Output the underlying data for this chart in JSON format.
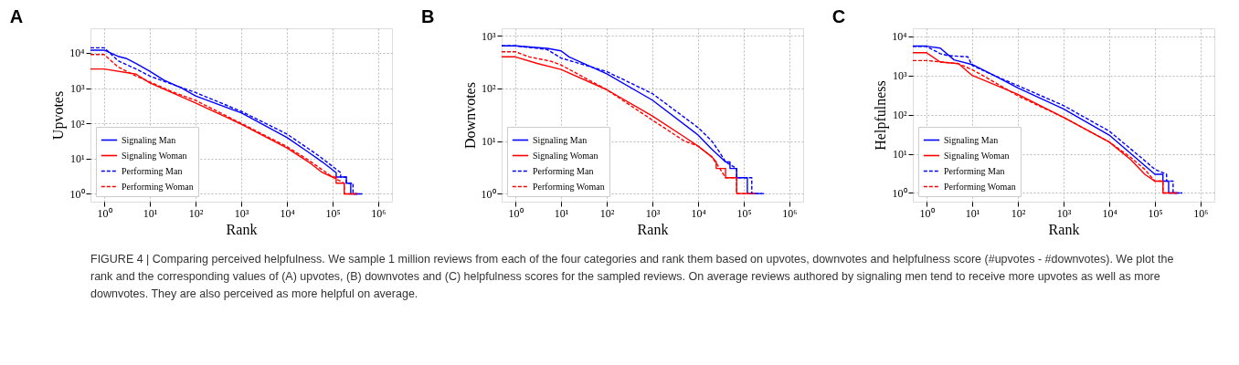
{
  "chart_data": [
    {
      "type": "line",
      "title": "A",
      "xlabel": "Rank",
      "ylabel": "Upvotes",
      "log": "xy",
      "grid": true,
      "legend": "bottom left",
      "xlim": [
        0.5,
        2000000
      ],
      "ylim": [
        0.6,
        50000
      ],
      "xticks": [
        {
          "value": 1,
          "label": "10⁰"
        },
        {
          "value": 10,
          "label": "10¹"
        },
        {
          "value": 100,
          "label": "10²"
        },
        {
          "value": 1000,
          "label": "10³"
        },
        {
          "value": 10000,
          "label": "10⁴"
        },
        {
          "value": 100000,
          "label": "10⁵"
        },
        {
          "value": 1000000,
          "label": "10⁶"
        }
      ],
      "yticks": [
        {
          "value": 1,
          "label": "10⁰"
        },
        {
          "value": 10,
          "label": "10¹"
        },
        {
          "value": 100,
          "label": "10²"
        },
        {
          "value": 1000,
          "label": "10³"
        },
        {
          "value": 10000,
          "label": "10⁴"
        }
      ],
      "series": [
        {
          "name": "Signaling Man",
          "color": "#0000ff",
          "line_style": "solid",
          "x": [
            0.5,
            1,
            2,
            3,
            5,
            10,
            20,
            50,
            100,
            1000,
            10000,
            30000,
            60000,
            120000,
            120000,
            200000,
            200000,
            250000,
            250000,
            400000
          ],
          "values": [
            12000,
            12000,
            8000,
            7000,
            5000,
            3000,
            1700,
            1000,
            600,
            200,
            40,
            15,
            8,
            4,
            3,
            3,
            2,
            2,
            1,
            1
          ]
        },
        {
          "name": "Signaling Woman",
          "color": "#ff0000",
          "line_style": "solid",
          "x": [
            0.5,
            1,
            5,
            10,
            100,
            1000,
            10000,
            30000,
            60000,
            100000,
            120000,
            120000,
            180000,
            180000,
            350000
          ],
          "values": [
            3500,
            3500,
            2500,
            1400,
            380,
            95,
            20,
            8,
            4,
            3,
            3,
            2,
            2,
            1,
            1
          ]
        },
        {
          "name": "Performing Man",
          "color": "#0000ff",
          "line_style": "dashed",
          "x": [
            0.5,
            1,
            2,
            5,
            10,
            30,
            100,
            1000,
            10000,
            50000,
            100000,
            150000,
            150000,
            200000,
            200000,
            280000,
            280000,
            450000
          ],
          "values": [
            14000,
            14000,
            6000,
            3500,
            2200,
            1300,
            750,
            220,
            50,
            12,
            6,
            4,
            3,
            3,
            2,
            2,
            1,
            1
          ]
        },
        {
          "name": "Performing Woman",
          "color": "#ff0000",
          "line_style": "dashed",
          "x": [
            0.5,
            1,
            2,
            5,
            10,
            30,
            100,
            1000,
            10000,
            30000,
            100000,
            180000,
            180000,
            350000
          ],
          "values": [
            9000,
            9000,
            4000,
            2200,
            1500,
            800,
            450,
            100,
            22,
            9,
            3,
            2,
            1,
            1
          ]
        }
      ],
      "annotations": [
        "FIGURE 4 | Comparing perceived helpfulness. We sample 1 million reviews from each of the four categories and rank them based on upvotes, downvotes and helpfulness score (#upvotes - #downvotes). We plot the rank and the corresponding values of (A) upvotes, (B) downvotes and (C) helpfulness scores for the sampled reviews. On average reviews authored by signaling men tend to receive more upvotes as well as more downvotes. They are also perceived as more helpful on average."
      ]
    },
    {
      "type": "line",
      "title": "B",
      "xlabel": "Rank",
      "ylabel": "Downvotes",
      "log": "xy",
      "grid": true,
      "legend": "bottom left",
      "xlim": [
        0.5,
        2000000
      ],
      "ylim": [
        0.7,
        1400
      ],
      "xticks": [
        {
          "value": 1,
          "label": "10⁰"
        },
        {
          "value": 10,
          "label": "10¹"
        },
        {
          "value": 100,
          "label": "10²"
        },
        {
          "value": 1000,
          "label": "10³"
        },
        {
          "value": 10000,
          "label": "10⁴"
        },
        {
          "value": 100000,
          "label": "10⁵"
        },
        {
          "value": 1000000,
          "label": "10⁶"
        }
      ],
      "yticks": [
        {
          "value": 1,
          "label": "10⁰"
        },
        {
          "value": 10,
          "label": "10¹"
        },
        {
          "value": 100,
          "label": "10²"
        },
        {
          "value": 1000,
          "label": "10³"
        }
      ],
      "series": [
        {
          "name": "Signaling Man",
          "color": "#0000ff",
          "line_style": "solid",
          "x": [
            0.5,
            1,
            5,
            10,
            15,
            100,
            1000,
            10000,
            20000,
            40000,
            50000,
            50000,
            70000,
            70000,
            120000,
            120000,
            250000
          ],
          "values": [
            650,
            650,
            580,
            520,
            400,
            190,
            60,
            13,
            7,
            4,
            4,
            3,
            3,
            2,
            2,
            1,
            1
          ]
        },
        {
          "name": "Signaling Woman",
          "color": "#ff0000",
          "line_style": "solid",
          "x": [
            0.5,
            1,
            3,
            10,
            100,
            1000,
            5000,
            10000,
            20000,
            25000,
            25000,
            40000,
            40000,
            70000,
            70000,
            180000
          ],
          "values": [
            400,
            400,
            300,
            230,
            95,
            30,
            12,
            8,
            5,
            4,
            3,
            3,
            2,
            2,
            1,
            1
          ]
        },
        {
          "name": "Performing Man",
          "color": "#0000ff",
          "line_style": "dashed",
          "x": [
            0.5,
            1,
            5,
            10,
            100,
            1000,
            10000,
            20000,
            30000,
            40000,
            70000,
            70000,
            150000,
            150000,
            280000
          ],
          "values": [
            650,
            650,
            550,
            380,
            210,
            80,
            18,
            10,
            6,
            4,
            3,
            2,
            2,
            1,
            1
          ]
        },
        {
          "name": "Performing Woman",
          "color": "#ff0000",
          "line_style": "dashed",
          "x": [
            0.5,
            1,
            2,
            6,
            10,
            100,
            1000,
            5000,
            10000,
            20000,
            30000,
            40000,
            70000,
            70000,
            180000
          ],
          "values": [
            500,
            500,
            400,
            330,
            280,
            95,
            25,
            10,
            8,
            5,
            3,
            2,
            2,
            1,
            1
          ]
        }
      ]
    },
    {
      "type": "line",
      "title": "C",
      "xlabel": "Rank",
      "ylabel": "Helpfulness",
      "log": "xy",
      "grid": true,
      "legend": "bottom left",
      "xlim": [
        0.5,
        2000000
      ],
      "ylim": [
        0.6,
        16000
      ],
      "xticks": [
        {
          "value": 1,
          "label": "10⁰"
        },
        {
          "value": 10,
          "label": "10¹"
        },
        {
          "value": 100,
          "label": "10²"
        },
        {
          "value": 1000,
          "label": "10³"
        },
        {
          "value": 10000,
          "label": "10⁴"
        },
        {
          "value": 100000,
          "label": "10⁵"
        },
        {
          "value": 1000000,
          "label": "10⁶"
        }
      ],
      "yticks": [
        {
          "value": 1,
          "label": "10⁰"
        },
        {
          "value": 10,
          "label": "10¹"
        },
        {
          "value": 100,
          "label": "10²"
        },
        {
          "value": 1000,
          "label": "10³"
        },
        {
          "value": 10000,
          "label": "10⁴"
        }
      ],
      "series": [
        {
          "name": "Signaling Man",
          "color": "#0000ff",
          "line_style": "solid",
          "x": [
            0.5,
            1,
            2,
            4,
            10,
            30,
            100,
            1000,
            10000,
            30000,
            60000,
            100000,
            150000,
            150000,
            200000,
            200000,
            350000
          ],
          "values": [
            5600,
            5600,
            5000,
            2500,
            1900,
            1000,
            480,
            140,
            30,
            10,
            5,
            3,
            3,
            2,
            2,
            1,
            1
          ]
        },
        {
          "name": "Signaling Woman",
          "color": "#ff0000",
          "line_style": "solid",
          "x": [
            0.5,
            1,
            2,
            5,
            10,
            100,
            1000,
            10000,
            30000,
            60000,
            100000,
            150000,
            150000,
            300000
          ],
          "values": [
            3800,
            3800,
            2200,
            2000,
            1000,
            330,
            85,
            20,
            7,
            3,
            2,
            2,
            1,
            1
          ]
        },
        {
          "name": "Performing Man",
          "color": "#0000ff",
          "line_style": "dashed",
          "x": [
            0.5,
            1,
            2,
            3,
            8,
            10,
            30,
            100,
            1000,
            10000,
            50000,
            100000,
            180000,
            180000,
            250000,
            250000,
            400000
          ],
          "values": [
            5500,
            5500,
            3600,
            3200,
            3000,
            1800,
            1000,
            550,
            170,
            38,
            8,
            4,
            3,
            2,
            2,
            1,
            1
          ]
        },
        {
          "name": "Performing Woman",
          "color": "#ff0000",
          "line_style": "dashed",
          "x": [
            0.5,
            1,
            5,
            10,
            20,
            100,
            1000,
            10000,
            30000,
            60000,
            100000,
            150000,
            150000,
            320000
          ],
          "values": [
            2400,
            2400,
            2000,
            1400,
            900,
            300,
            85,
            20,
            8,
            4,
            2,
            2,
            1,
            1
          ]
        }
      ]
    }
  ]
}
